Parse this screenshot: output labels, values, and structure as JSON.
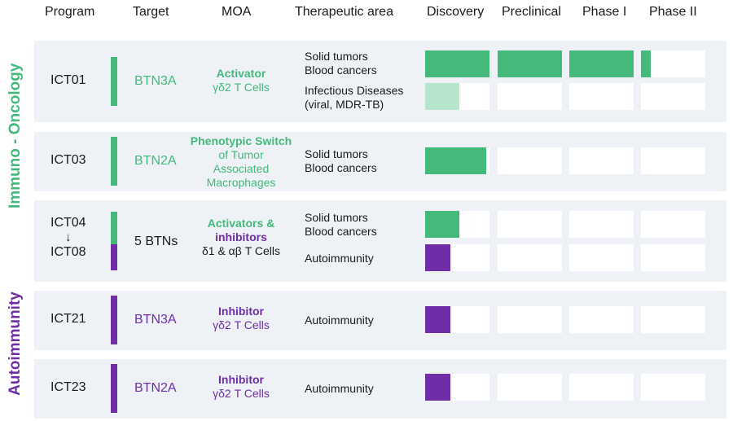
{
  "colors": {
    "immuno_green": "#43b97b",
    "immuno_light": "#b5e5cb",
    "autoimmunity_purple": "#6f2da8",
    "panel_bg": "#eef2f6"
  },
  "header": {
    "program": "Program",
    "target": "Target",
    "moa": "MOA",
    "area": "Therapeutic area",
    "stages": [
      "Discovery",
      "Preclinical",
      "Phase I",
      "Phase II"
    ]
  },
  "sections": [
    {
      "label": "Immuno - Oncology",
      "color": "#43b97b"
    },
    {
      "label": "Autoimmunity",
      "color": "#6f2da8"
    }
  ],
  "chart_data": {
    "type": "bar",
    "stages": [
      "Discovery",
      "Preclinical",
      "Phase I",
      "Phase II"
    ],
    "programs": [
      {
        "name": "ICT01",
        "target": "BTN3A",
        "moa_bold": "Activator",
        "moa_normal": "γδ2 T Cells",
        "indications": [
          {
            "area": [
              "Solid tumors",
              "Blood cancers"
            ],
            "progress": 3.15,
            "color": "#43b97b"
          },
          {
            "area": [
              "Infectious Diseases",
              "(viral, MDR-TB)"
            ],
            "progress": 0.53,
            "color": "#b5e5cb"
          }
        ]
      },
      {
        "name": "ICT03",
        "target": "BTN2A",
        "moa_bold": "Phenotypic Switch",
        "moa_normal": "of Tumor Associated Macrophages",
        "indications": [
          {
            "area": [
              "Solid tumors",
              "Blood cancers"
            ],
            "progress": 0.95,
            "color": "#43b97b"
          }
        ]
      },
      {
        "name": "ICT04",
        "name2": "ICT08",
        "arrow": "↓",
        "target": "5 BTNs",
        "moa_bold": "Activators &",
        "moa_bold2": "inhibitors",
        "moa_normal": "δ1 & αβ T Cells",
        "indications": [
          {
            "area": [
              "Solid tumors",
              "Blood cancers"
            ],
            "progress": 0.53,
            "color": "#43b97b"
          },
          {
            "area": [
              "Autoimmunity"
            ],
            "progress": 0.39,
            "color": "#6f2da8"
          }
        ]
      },
      {
        "name": "ICT21",
        "target": "BTN3A",
        "moa_bold": "Inhibitor",
        "moa_normal": "γδ2 T Cells",
        "indications": [
          {
            "area": [
              "Autoimmunity"
            ],
            "progress": 0.39,
            "color": "#6f2da8"
          }
        ]
      },
      {
        "name": "ICT23",
        "target": "BTN2A",
        "moa_bold": "Inhibitor",
        "moa_normal": "γδ2 T Cells",
        "indications": [
          {
            "area": [
              "Autoimmunity"
            ],
            "progress": 0.39,
            "color": "#6f2da8"
          }
        ]
      }
    ]
  }
}
